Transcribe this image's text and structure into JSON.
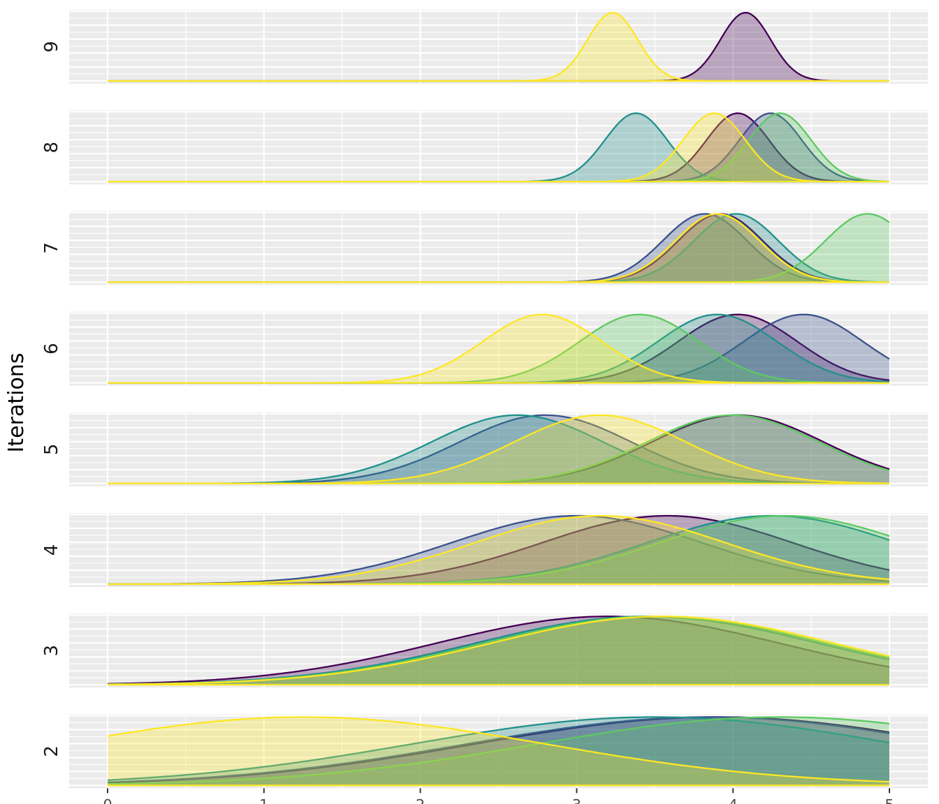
{
  "chart_data": {
    "type": "area",
    "subtype": "stacked density panels (one panel per iteration, normal-density curves per series)",
    "ylabel": "Iterations",
    "xlim": [
      0,
      5
    ],
    "x_ticks": [
      0,
      1,
      2,
      3,
      4,
      5
    ],
    "x_tick_labels": [
      "0",
      "1",
      "2",
      "3",
      "4",
      "5"
    ],
    "grid": true,
    "legend": "none",
    "colors": {
      "panel_background": "#ebebeb",
      "grid": "#ffffff",
      "series": [
        "#440154",
        "#3b528b",
        "#21908c",
        "#5ec962",
        "#fde725"
      ]
    },
    "series_names": [],
    "panels": [
      {
        "label": "9",
        "curves": [
          {
            "series": 0,
            "mean": 4.08,
            "sd": 0.16
          },
          {
            "series": 4,
            "mean": 3.23,
            "sd": 0.16
          }
        ]
      },
      {
        "label": "8",
        "curves": [
          {
            "series": 0,
            "mean": 4.03,
            "sd": 0.2
          },
          {
            "series": 1,
            "mean": 4.24,
            "sd": 0.2
          },
          {
            "series": 2,
            "mean": 3.38,
            "sd": 0.2
          },
          {
            "series": 3,
            "mean": 4.3,
            "sd": 0.2
          },
          {
            "series": 4,
            "mean": 3.88,
            "sd": 0.2
          }
        ]
      },
      {
        "label": "7",
        "curves": [
          {
            "series": 0,
            "mean": 3.92,
            "sd": 0.27
          },
          {
            "series": 1,
            "mean": 3.82,
            "sd": 0.27
          },
          {
            "series": 2,
            "mean": 4.02,
            "sd": 0.27
          },
          {
            "series": 3,
            "mean": 4.86,
            "sd": 0.27
          },
          {
            "series": 4,
            "mean": 3.9,
            "sd": 0.27
          }
        ]
      },
      {
        "label": "6",
        "curves": [
          {
            "series": 0,
            "mean": 4.03,
            "sd": 0.38
          },
          {
            "series": 1,
            "mean": 4.45,
            "sd": 0.38
          },
          {
            "series": 2,
            "mean": 3.9,
            "sd": 0.38
          },
          {
            "series": 3,
            "mean": 3.4,
            "sd": 0.38
          },
          {
            "series": 4,
            "mean": 2.78,
            "sd": 0.38
          }
        ]
      },
      {
        "label": "5",
        "curves": [
          {
            "series": 0,
            "mean": 4.03,
            "sd": 0.55
          },
          {
            "series": 1,
            "mean": 2.8,
            "sd": 0.55
          },
          {
            "series": 2,
            "mean": 2.62,
            "sd": 0.55
          },
          {
            "series": 3,
            "mean": 4.0,
            "sd": 0.55
          },
          {
            "series": 4,
            "mean": 3.15,
            "sd": 0.55
          }
        ]
      },
      {
        "label": "4",
        "curves": [
          {
            "series": 0,
            "mean": 3.58,
            "sd": 0.8
          },
          {
            "series": 1,
            "mean": 3.0,
            "sd": 0.8
          },
          {
            "series": 2,
            "mean": 4.25,
            "sd": 0.8
          },
          {
            "series": 3,
            "mean": 4.33,
            "sd": 0.8
          },
          {
            "series": 4,
            "mean": 3.15,
            "sd": 0.8
          }
        ]
      },
      {
        "label": "3",
        "curves": [
          {
            "series": 0,
            "mean": 3.2,
            "sd": 1.1
          },
          {
            "series": 1,
            "mean": 3.45,
            "sd": 1.1
          },
          {
            "series": 2,
            "mean": 3.45,
            "sd": 1.1
          },
          {
            "series": 3,
            "mean": 3.5,
            "sd": 1.1
          },
          {
            "series": 4,
            "mean": 3.55,
            "sd": 1.1
          }
        ]
      },
      {
        "label": "2",
        "curves": [
          {
            "series": 0,
            "mean": 3.9,
            "sd": 1.55
          },
          {
            "series": 1,
            "mean": 3.85,
            "sd": 1.55
          },
          {
            "series": 2,
            "mean": 3.5,
            "sd": 1.55
          },
          {
            "series": 3,
            "mean": 4.3,
            "sd": 1.55
          },
          {
            "series": 4,
            "mean": 1.25,
            "sd": 1.55
          }
        ]
      }
    ]
  }
}
